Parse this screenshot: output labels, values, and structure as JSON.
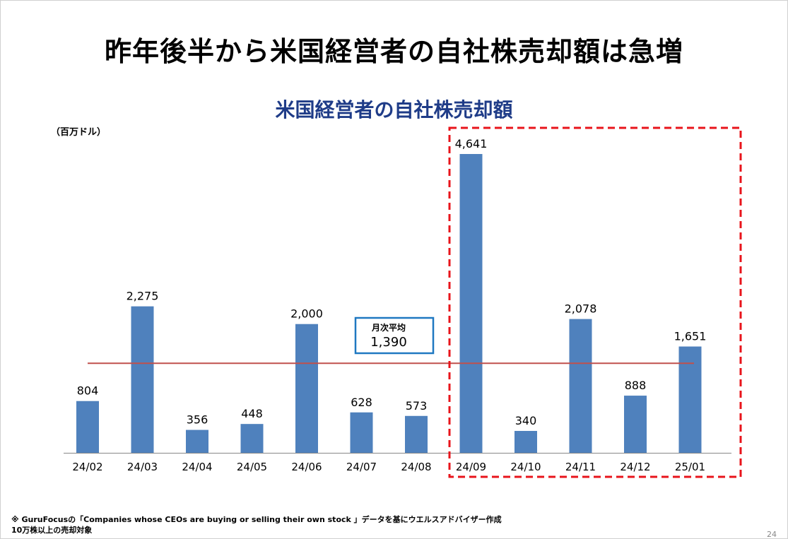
{
  "slide": {
    "title": "昨年後半から米国経営者の自社株売却額は急増",
    "unit": "（百万ドル）",
    "footnote_line1": "※ GuruFocusの「Companies whose CEOs are buying or selling their own stock 」データを基にウエルスアドバイザー作成",
    "footnote_line2": "10万株以上の売却対象",
    "page_number": "24"
  },
  "chart_data": {
    "type": "bar",
    "title": "米国経営者の自社株売却額",
    "xlabel": "",
    "ylabel": "",
    "categories": [
      "24/02",
      "24/03",
      "24/04",
      "24/05",
      "24/06",
      "24/07",
      "24/08",
      "24/09",
      "24/10",
      "24/11",
      "24/12",
      "25/01"
    ],
    "values": [
      804,
      2275,
      356,
      448,
      2000,
      628,
      573,
      4641,
      340,
      2078,
      888,
      1651
    ],
    "value_labels": [
      "804",
      "2,275",
      "356",
      "448",
      "2,000",
      "628",
      "573",
      "4,641",
      "340",
      "2,078",
      "888",
      "1,651"
    ],
    "ylim": [
      0,
      4641
    ],
    "bar_color": "#4f81bd",
    "average": {
      "label": "月次平均",
      "value_label": "1,390",
      "value": 1390,
      "color": "#c0504d"
    },
    "highlight": {
      "from": "24/09",
      "to": "25/01",
      "color": "#e8141b"
    },
    "grid": false
  }
}
